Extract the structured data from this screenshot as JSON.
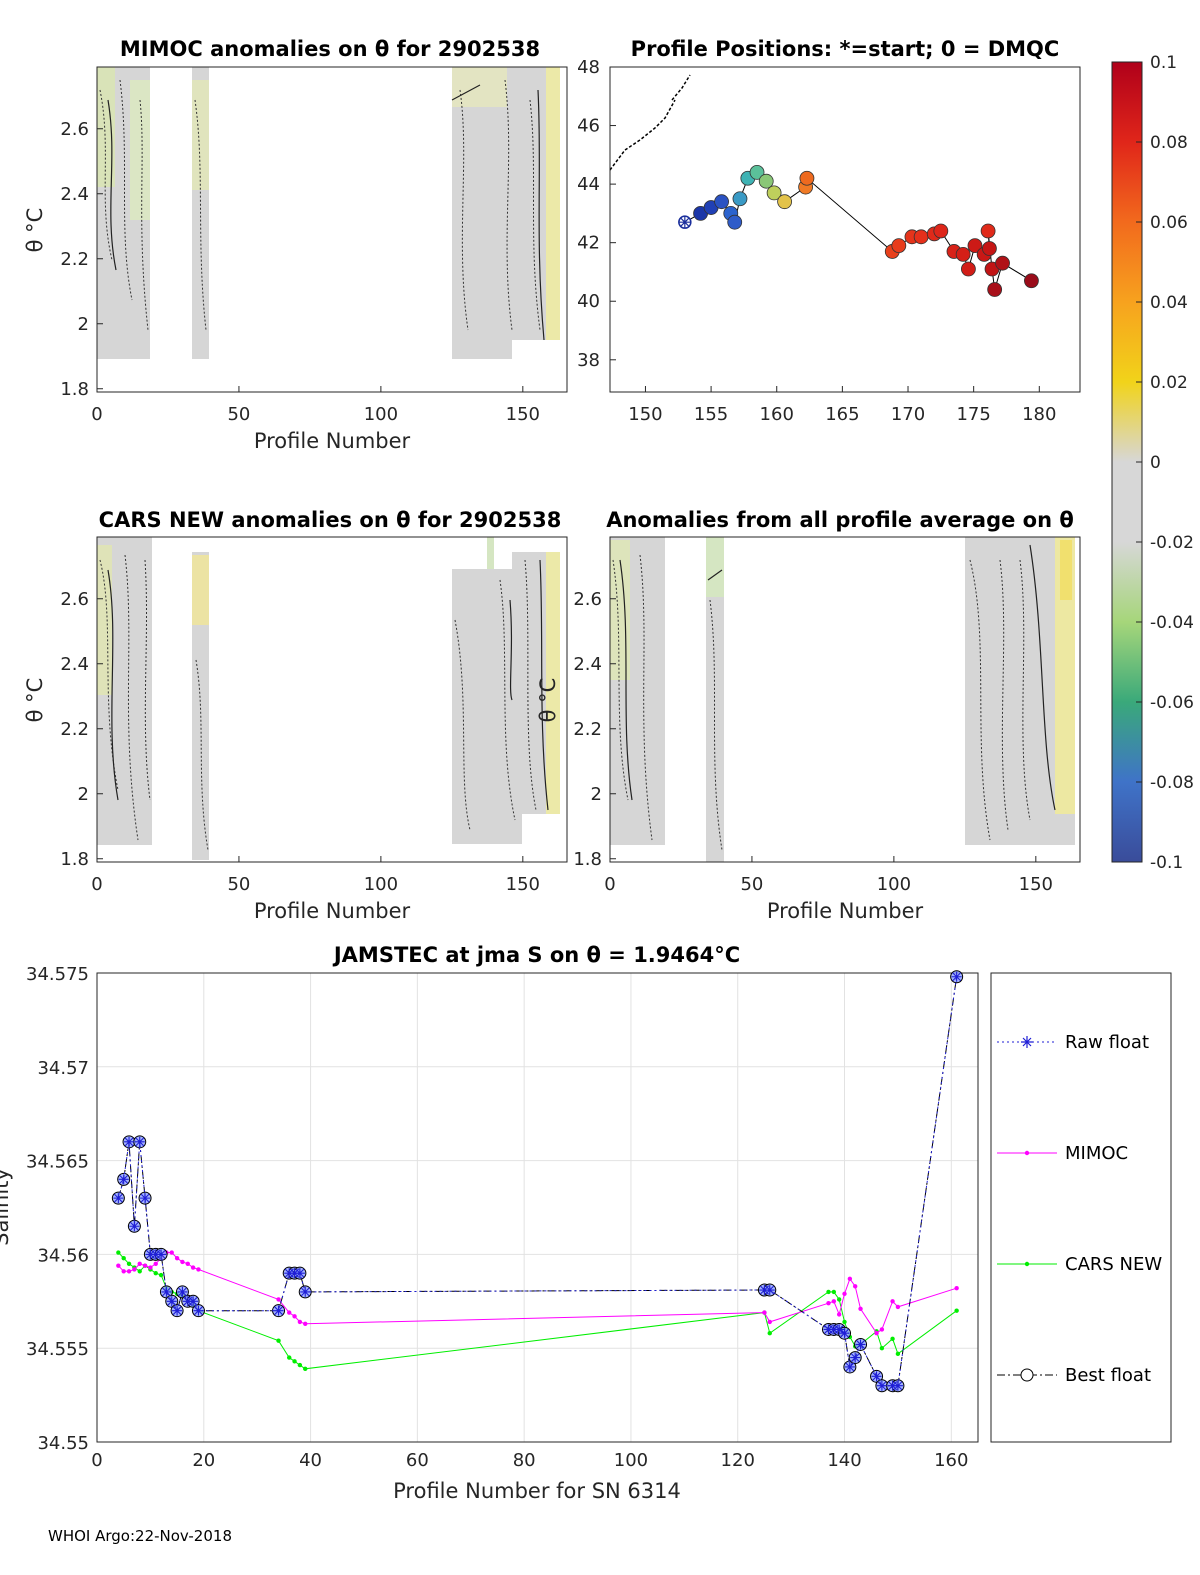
{
  "footer": "WHOI Argo:22-Nov-2018",
  "colors": {
    "raw": "#1f1fd6",
    "mimoc": "#ff00ff",
    "cars": "#00ee00",
    "best": "#000000",
    "marker_fill": "#8fa3ff",
    "grid": "#e2e2e2",
    "field": "#d6d6d6"
  },
  "colorbar": {
    "ticks": [
      "0.1",
      "0.08",
      "0.06",
      "0.04",
      "0.02",
      "0",
      "-0.02",
      "-0.04",
      "-0.06",
      "-0.08",
      "-0.1"
    ],
    "stops": [
      "#b0001a",
      "#e0261a",
      "#f26a1d",
      "#f7a21e",
      "#f1d31a",
      "#d7d7d7",
      "#d7d7d7",
      "#a6d67a",
      "#3aa97a",
      "#3f73c8",
      "#3a4c9a"
    ]
  },
  "panels": {
    "mimoc": {
      "title": "MIMOC anomalies on θ  for 2902538",
      "ylabel": "θ °C",
      "xlabel": "Profile Number",
      "xticks": [
        "0",
        "50",
        "100",
        "150"
      ],
      "yticks": [
        "2.6",
        "2.4",
        "2.2",
        "2",
        "1.8"
      ]
    },
    "positions": {
      "title": "Profile Positions: *=start; 0 = DMQC",
      "xticks": [
        "150",
        "155",
        "160",
        "165",
        "170",
        "175",
        "180"
      ],
      "yticks": [
        "48",
        "46",
        "44",
        "42",
        "40",
        "38"
      ],
      "track": [
        [
          153,
          42.7
        ],
        [
          154.2,
          43
        ],
        [
          155,
          43.2
        ],
        [
          155.8,
          43.4
        ],
        [
          156.5,
          43
        ],
        [
          156.8,
          42.7
        ],
        [
          157.2,
          43.5
        ],
        [
          157.8,
          44.2
        ],
        [
          158.5,
          44.4
        ],
        [
          159.2,
          44.1
        ],
        [
          159.8,
          43.7
        ],
        [
          160.6,
          43.4
        ],
        [
          162.2,
          43.9
        ],
        [
          162.3,
          44.2
        ],
        [
          168.8,
          41.7
        ],
        [
          169.3,
          41.9
        ],
        [
          170.3,
          42.2
        ],
        [
          171,
          42.2
        ],
        [
          172,
          42.3
        ],
        [
          172.5,
          42.4
        ],
        [
          173.5,
          41.7
        ],
        [
          174.2,
          41.6
        ],
        [
          174.6,
          41.1
        ],
        [
          175.1,
          41.9
        ],
        [
          175.8,
          41.6
        ],
        [
          176.2,
          41.8
        ],
        [
          176.1,
          42.4
        ],
        [
          176.4,
          41.1
        ],
        [
          176.6,
          40.4
        ],
        [
          177.2,
          41.3
        ],
        [
          179.4,
          40.7
        ]
      ],
      "colors": [
        "#1b2f9c",
        "#1b36a8",
        "#2040b5",
        "#2a52c2",
        "#2b63ce",
        "#2f5cc9",
        "#3a9ac5",
        "#3fb3b4",
        "#5bc09a",
        "#8ac777",
        "#bfcf5c",
        "#e3c34a",
        "#f07a25",
        "#ee6a1f",
        "#e8401c",
        "#e83c1c",
        "#e5341b",
        "#e5301b",
        "#e02a1a",
        "#de261a",
        "#d82218",
        "#d41f17",
        "#d11d17",
        "#cc1a16",
        "#c91816",
        "#c51615",
        "#e02a1a",
        "#c11415",
        "#a8101a",
        "#b01217",
        "#9a0c1a"
      ]
    },
    "cars": {
      "title": "CARS NEW anomalies on θ for 2902538",
      "ylabel": "θ °C",
      "xlabel": "Profile Number",
      "xticks": [
        "0",
        "50",
        "100",
        "150"
      ],
      "yticks": [
        "2.6",
        "2.4",
        "2.2",
        "2",
        "1.8"
      ]
    },
    "allprof": {
      "title": "Anomalies from all profile average on θ",
      "ylabel": "θ °C",
      "xlabel": "Profile Number",
      "xticks": [
        "0",
        "50",
        "100",
        "150"
      ],
      "yticks": [
        "2.6",
        "2.4",
        "2.2",
        "2",
        "1.8"
      ]
    }
  },
  "chart_data": {
    "type": "line",
    "title": "JAMSTEC at jma S on θ = 1.9464°C",
    "xlabel": "Profile Number for SN 6314",
    "ylabel": "Salinity",
    "xlim": [
      0,
      165
    ],
    "ylim": [
      34.55,
      34.575
    ],
    "xticks": [
      "0",
      "20",
      "40",
      "60",
      "80",
      "100",
      "120",
      "140",
      "160"
    ],
    "yticks": [
      "34.575",
      "34.57",
      "34.565",
      "34.56",
      "34.555",
      "34.55"
    ],
    "legend_placement": "right-outside",
    "series": [
      {
        "name": "Raw float",
        "style": "dotted",
        "marker": "star",
        "x": [
          4,
          5,
          6,
          7,
          8,
          9,
          10,
          11,
          12,
          13,
          14,
          15,
          16,
          17,
          18,
          19,
          34,
          36,
          37,
          38,
          39,
          125,
          126,
          137,
          138,
          139,
          140,
          141,
          142,
          143,
          146,
          147,
          149,
          150,
          161
        ],
        "y": [
          34.563,
          34.564,
          34.566,
          34.5615,
          34.566,
          34.563,
          34.56,
          34.56,
          34.56,
          34.558,
          34.5575,
          34.557,
          34.558,
          34.5575,
          34.5575,
          34.557,
          34.557,
          34.559,
          34.559,
          34.559,
          34.558,
          34.5581,
          34.5581,
          34.556,
          34.556,
          34.556,
          34.5558,
          34.554,
          34.5545,
          34.5552,
          34.5535,
          34.553,
          34.553,
          34.553,
          34.5748
        ]
      },
      {
        "name": "MIMOC",
        "style": "solid",
        "marker": "dot",
        "x": [
          4,
          5,
          6,
          7,
          8,
          9,
          10,
          11,
          12,
          13,
          14,
          15,
          16,
          17,
          18,
          19,
          34,
          36,
          37,
          38,
          39,
          125,
          126,
          137,
          138,
          139,
          140,
          141,
          142,
          143,
          146,
          147,
          149,
          150,
          161
        ],
        "y": [
          34.5594,
          34.5591,
          34.5591,
          34.5592,
          34.5595,
          34.5594,
          34.5593,
          34.5595,
          34.5598,
          34.5601,
          34.5601,
          34.5598,
          34.5596,
          34.5595,
          34.5593,
          34.5592,
          34.5576,
          34.5569,
          34.5567,
          34.5564,
          34.5563,
          34.5569,
          34.5564,
          34.5574,
          34.5575,
          34.5568,
          34.5579,
          34.5587,
          34.5583,
          34.5571,
          34.5558,
          34.556,
          34.5575,
          34.5572,
          34.5582
        ]
      },
      {
        "name": "CARS NEW",
        "style": "solid",
        "marker": "dot",
        "x": [
          4,
          5,
          6,
          7,
          8,
          9,
          10,
          11,
          12,
          13,
          14,
          15,
          16,
          17,
          18,
          19,
          34,
          36,
          37,
          38,
          39,
          125,
          126,
          137,
          138,
          139,
          140,
          141,
          142,
          143,
          146,
          147,
          149,
          150,
          161
        ],
        "y": [
          34.5601,
          34.5598,
          34.5595,
          34.5593,
          34.5591,
          34.5594,
          34.5592,
          34.559,
          34.5589,
          34.5582,
          34.558,
          34.5579,
          34.5578,
          34.5575,
          34.5573,
          34.557,
          34.5554,
          34.5545,
          34.5543,
          34.5541,
          34.5539,
          34.5569,
          34.5558,
          34.558,
          34.558,
          34.5576,
          34.5564,
          34.5556,
          34.5551,
          34.5552,
          34.5559,
          34.555,
          34.5555,
          34.5547,
          34.557
        ]
      },
      {
        "name": "Best float",
        "style": "dashdot",
        "marker": "circle",
        "x": [
          4,
          5,
          6,
          7,
          8,
          9,
          10,
          11,
          12,
          13,
          14,
          15,
          16,
          17,
          18,
          19,
          34,
          36,
          37,
          38,
          39,
          125,
          126,
          137,
          138,
          139,
          140,
          141,
          142,
          143,
          146,
          147,
          149,
          150,
          161
        ],
        "y": [
          34.563,
          34.564,
          34.566,
          34.5615,
          34.566,
          34.563,
          34.56,
          34.56,
          34.56,
          34.558,
          34.5575,
          34.557,
          34.558,
          34.5575,
          34.5575,
          34.557,
          34.557,
          34.559,
          34.559,
          34.559,
          34.558,
          34.5581,
          34.5581,
          34.556,
          34.556,
          34.556,
          34.5558,
          34.554,
          34.5545,
          34.5552,
          34.5535,
          34.553,
          34.553,
          34.553,
          34.5748
        ]
      }
    ]
  }
}
